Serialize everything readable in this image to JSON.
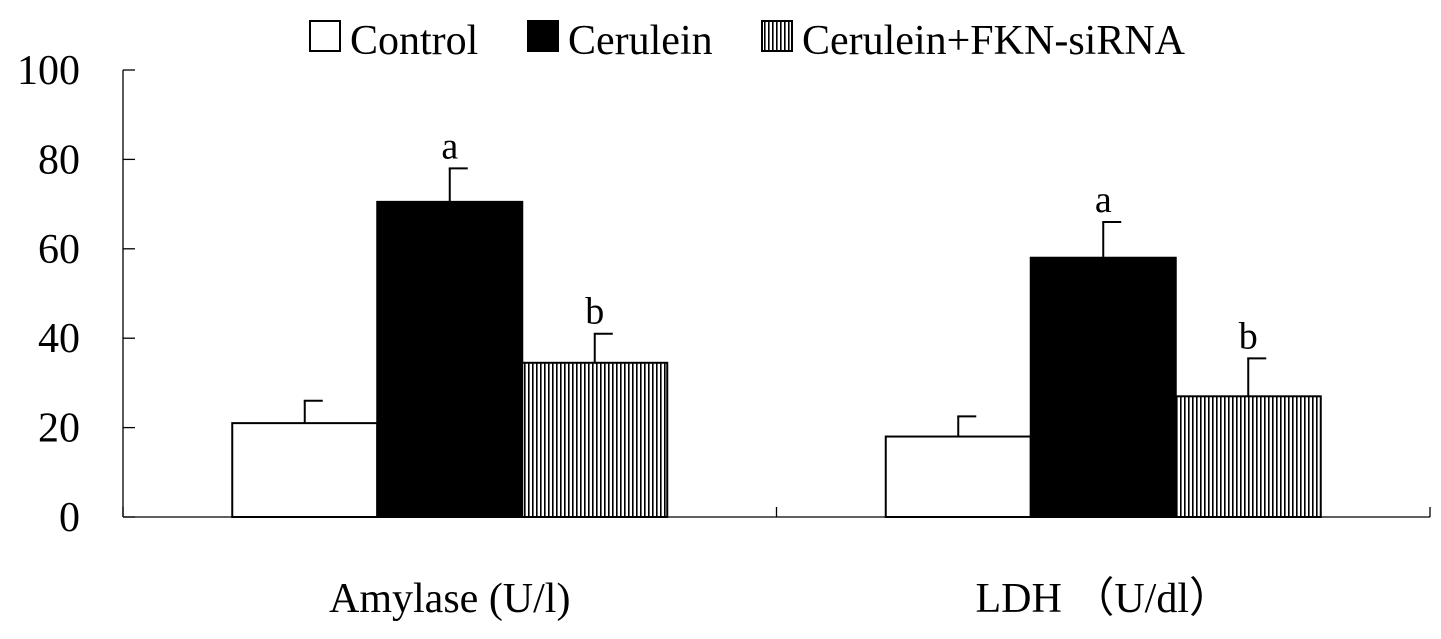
{
  "chart_data": {
    "type": "bar",
    "title": "",
    "xlabel": "",
    "ylabel": "",
    "ylim": [
      0,
      100
    ],
    "yticks": [
      0,
      20,
      40,
      60,
      80,
      100
    ],
    "grid": false,
    "legend_position": "top",
    "categories": [
      "Amylase (U/l)",
      "LDH （U/dl）"
    ],
    "series": [
      {
        "name": "Control",
        "fill": "white",
        "values": [
          21,
          18
        ],
        "errors": [
          5,
          4.5
        ],
        "annotations": [
          "",
          ""
        ]
      },
      {
        "name": "Cerulein",
        "fill": "black",
        "values": [
          70.5,
          58
        ],
        "errors": [
          7.5,
          8
        ],
        "annotations": [
          "a",
          "a"
        ]
      },
      {
        "name": "Cerulein+FKN-siRNA",
        "fill": "vertical-stripes",
        "values": [
          34.5,
          27
        ],
        "errors": [
          6.5,
          8.5
        ],
        "annotations": [
          "b",
          "b"
        ]
      }
    ]
  }
}
